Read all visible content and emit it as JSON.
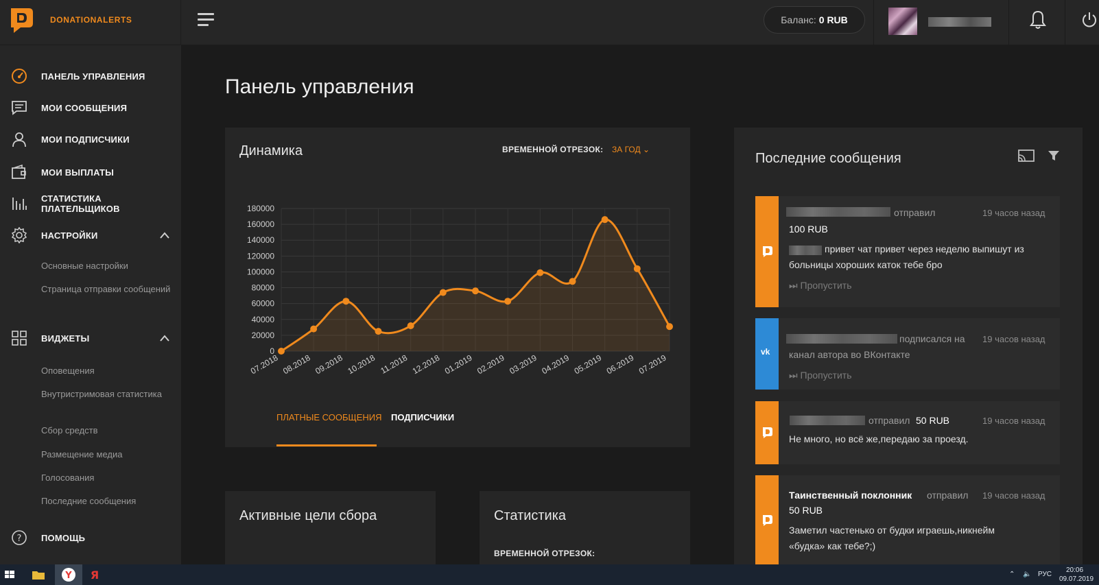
{
  "brand": {
    "name": "DONATIONALERTS",
    "accent": "#f08a1d"
  },
  "header": {
    "balance_label": "Баланс:",
    "balance_value": "0 RUB"
  },
  "sidebar": {
    "items": [
      {
        "label": "ПАНЕЛЬ УПРАВЛЕНИЯ",
        "icon": "dashboard-gauge-icon"
      },
      {
        "label": "МОИ СООБЩЕНИЯ",
        "icon": "message-icon"
      },
      {
        "label": "МОИ ПОДПИСЧИКИ",
        "icon": "user-icon"
      },
      {
        "label": "МОИ ВЫПЛАТЫ",
        "icon": "wallet-icon"
      },
      {
        "label": "СТАТИСТИКА ПЛАТЕЛЬЩИКОВ",
        "icon": "bar-stats-icon"
      },
      {
        "label": "НАСТРОЙКИ",
        "icon": "gear-icon"
      },
      {
        "label": "ВИДЖЕТЫ",
        "icon": "grid-icon"
      },
      {
        "label": "ПОМОЩЬ",
        "icon": "help-icon"
      }
    ],
    "settings_sub": [
      "Основные настройки",
      "Страница отправки сообщений"
    ],
    "widgets_sub": [
      "Оповещения",
      "Внутристримовая статистика",
      "Сбор средств",
      "Размещение медиа",
      "Голосования",
      "Последние сообщения"
    ]
  },
  "main": {
    "page_title": "Панель управления",
    "dynamics": {
      "title": "Динамика",
      "period_label": "ВРЕМЕННОЙ ОТРЕЗОК:",
      "period_value": "ЗА ГОД",
      "tabs": [
        "ПЛАТНЫЕ СООБЩЕНИЯ",
        "ПОДПИСЧИКИ"
      ]
    },
    "goals_title": "Активные цели сбора",
    "stats_title": "Статистика",
    "stats_period_label": "ВРЕМЕННОЙ ОТРЕЗОК:"
  },
  "chart_data": {
    "type": "line",
    "categories": [
      "07.2018",
      "08.2018",
      "09.2018",
      "10.2018",
      "11.2018",
      "12.2018",
      "01.2019",
      "02.2019",
      "03.2019",
      "04.2019",
      "05.2019",
      "06.2019",
      "07.2019"
    ],
    "values": [
      0,
      28000,
      63000,
      25000,
      32000,
      74000,
      76000,
      63000,
      99000,
      88000,
      166000,
      104000,
      31000
    ],
    "yticks": [
      "0",
      "20000",
      "40000",
      "60000",
      "80000",
      "100000",
      "120000",
      "140000",
      "160000",
      "180000"
    ],
    "ylim": [
      0,
      180000
    ],
    "color": "#f08a1d",
    "grid": true
  },
  "messages": {
    "title": "Последние сообщения",
    "items": [
      {
        "type": "donation",
        "action": "отправил",
        "amount": "100 RUB",
        "time": "19 часов назад",
        "text": "привет чат привет через неделю выпишут из больницы хороших каток тебе бро",
        "skip": "Пропустить"
      },
      {
        "type": "vk",
        "action_line1": "подписался на",
        "action_line2": "канал автора во ВКонтакте",
        "time": "19 часов назад",
        "skip": "Пропустить"
      },
      {
        "type": "donation",
        "action": "отправил",
        "amount": "50 RUB",
        "time": "19 часов назад",
        "text": "Не много, но всё же,передаю за проезд."
      },
      {
        "type": "donation",
        "name": "Таинственный поклонник",
        "action": "отправил",
        "amount": "50 RUB",
        "time": "19 часов назад",
        "text_line1": "Заметил частенько от будки играешь,никнейм",
        "text_line2": "«будка» как тебе?;)"
      }
    ]
  },
  "taskbar": {
    "lang": "РУС",
    "time": "20:06",
    "date": "09.07.2019"
  }
}
